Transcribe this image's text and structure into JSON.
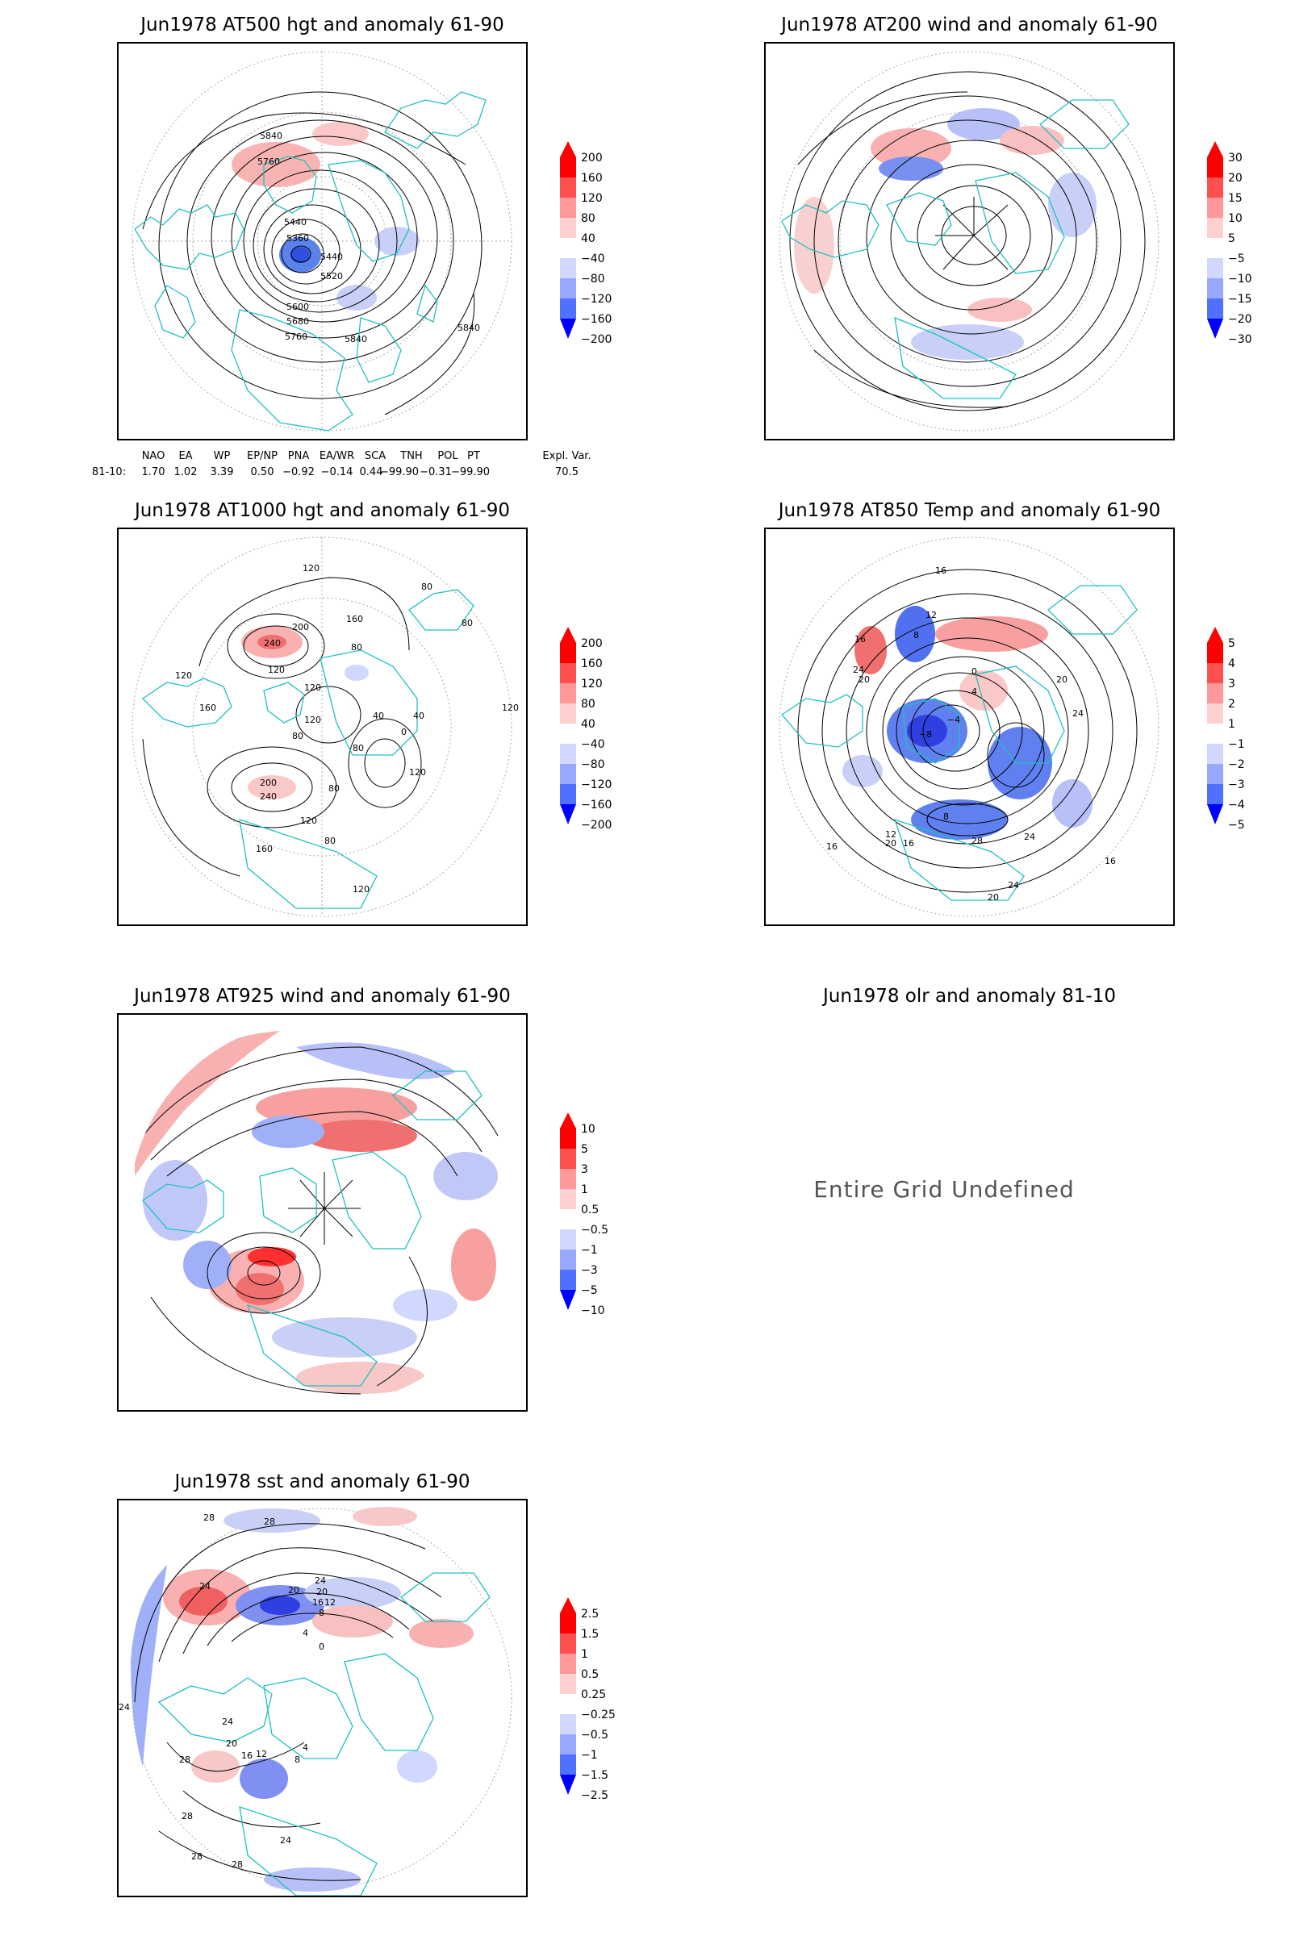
{
  "panels": [
    {
      "title": "Jun1978 AT500 hgt and anomaly 61-90",
      "colorbar": [
        "200",
        "160",
        "120",
        "80",
        "40",
        "−40",
        "−80",
        "−120",
        "−160",
        "−200"
      ],
      "contour_labels": [
        "5840",
        "5760",
        "5440",
        "5360",
        "5440",
        "5520",
        "5600",
        "5680",
        "5760",
        "5840",
        "5840"
      ]
    },
    {
      "title": "Jun1978 AT200 wind and anomaly 61-90",
      "colorbar": [
        "30",
        "20",
        "15",
        "10",
        "5",
        "−5",
        "−10",
        "−15",
        "−20",
        "−30"
      ],
      "contour_labels": []
    },
    {
      "title": "Jun1978 AT1000 hgt and anomaly 61-90",
      "colorbar": [
        "200",
        "160",
        "120",
        "80",
        "40",
        "−40",
        "−80",
        "−120",
        "−160",
        "−200"
      ],
      "contour_labels": [
        "120",
        "160",
        "200",
        "240",
        "80",
        "120",
        "120",
        "120",
        "80",
        "40",
        "0",
        "40",
        "120",
        "80",
        "160",
        "240",
        "200",
        "120",
        "160",
        "80",
        "120",
        "80",
        "120",
        "120",
        "80",
        "80"
      ]
    },
    {
      "title": "Jun1978 AT850 Temp and anomaly 61-90",
      "colorbar": [
        "5",
        "4",
        "3",
        "2",
        "1",
        "−1",
        "−2",
        "−3",
        "−4",
        "−5"
      ],
      "contour_labels": [
        "16",
        "12",
        "8",
        "16",
        "20",
        "24",
        "4",
        "0",
        "−4",
        "−8",
        "20",
        "24",
        "8",
        "12",
        "16",
        "20",
        "24",
        "28",
        "16",
        "20",
        "24",
        "16"
      ]
    },
    {
      "title": "Jun1978 AT925 wind and anomaly 61-90",
      "colorbar": [
        "10",
        "5",
        "3",
        "1",
        "0.5",
        "−0.5",
        "−1",
        "−3",
        "−5",
        "−10"
      ],
      "contour_labels": []
    },
    {
      "title": "Jun1978 olr and anomaly 81-10",
      "message": "Entire Grid Undefined"
    },
    {
      "title": "Jun1978 sst and anomaly 61-90",
      "colorbar": [
        "2.5",
        "1.5",
        "1",
        "0.5",
        "0.25",
        "−0.25",
        "−0.5",
        "−1",
        "−1.5",
        "−2.5"
      ],
      "contour_labels": [
        "28",
        "28",
        "24",
        "24",
        "20",
        "20",
        "16",
        "12",
        "8",
        "4",
        "0",
        "28",
        "24",
        "20",
        "16",
        "12",
        "8",
        "4",
        "28",
        "24",
        "28",
        "28",
        "24"
      ]
    }
  ],
  "indices": {
    "headers": [
      "NAO",
      "EA",
      "WP",
      "EP/NP",
      "PNA",
      "EA/WR",
      "SCA",
      "TNH",
      "POL",
      "PT",
      "Expl. Var."
    ],
    "row_label": "81-10:",
    "values": [
      "1.70",
      "1.02",
      "3.39",
      "0.50",
      "−0.92",
      "−0.14",
      "0.44",
      "−99.90",
      "−0.31",
      "−99.90",
      "70.5"
    ]
  },
  "colors": {
    "coast": "#20c0c0",
    "pos_strong": "#ff0000",
    "neg_strong": "#0000ff"
  }
}
